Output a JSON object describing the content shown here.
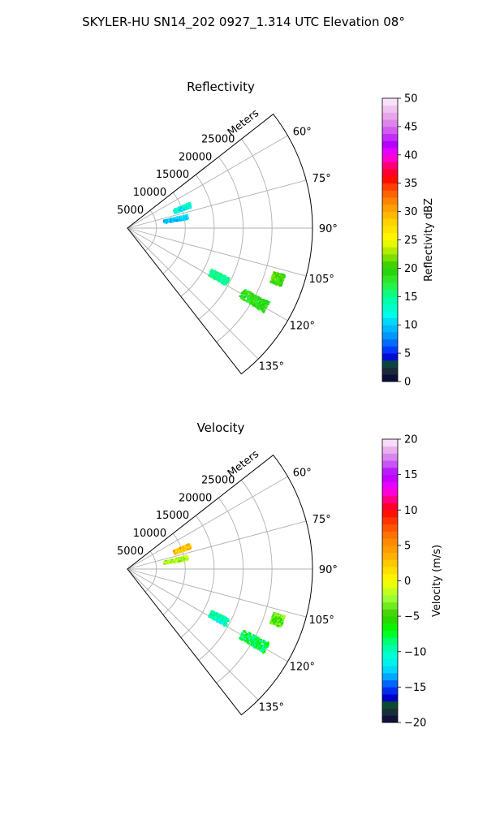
{
  "figure": {
    "title": "SKYLER-HU  SN14_202  0927_1.314 UTC Elevation 08°"
  },
  "chart_data": [
    {
      "type": "polar-sector-radar",
      "title": "Reflectivity",
      "radial_label": "Meters",
      "radial_ticks": [
        5000,
        10000,
        15000,
        20000,
        25000
      ],
      "radial_tick_labels": [
        "5000",
        "10000",
        "15000",
        "20000",
        "25000"
      ],
      "rlim": [
        0,
        32000
      ],
      "theta_range_deg": [
        52,
        142
      ],
      "theta_ticks_deg": [
        60,
        75,
        90,
        105,
        120,
        135
      ],
      "theta_tick_labels": [
        "60°",
        "75°",
        "90°",
        "105°",
        "120°",
        "135°"
      ],
      "grid": true,
      "colorbar": {
        "label": "Reflectivity dBZ",
        "min": 0,
        "max": 50,
        "ticks": [
          0,
          5,
          10,
          15,
          20,
          25,
          30,
          35,
          40,
          45,
          50
        ],
        "tick_labels": [
          "0",
          "5",
          "10",
          "15",
          "20",
          "25",
          "30",
          "35",
          "40",
          "45",
          "50"
        ],
        "color_stops": [
          [
            0,
            "#00003c"
          ],
          [
            1.5,
            "#1f1f3a"
          ],
          [
            3,
            "#0b4b30"
          ],
          [
            4,
            "#0000c8"
          ],
          [
            5.5,
            "#0033ff"
          ],
          [
            7.5,
            "#0088ff"
          ],
          [
            10,
            "#00c8ff"
          ],
          [
            12,
            "#00ffe6"
          ],
          [
            15,
            "#00ff96"
          ],
          [
            17.5,
            "#33ee33"
          ],
          [
            20,
            "#22cc00"
          ],
          [
            22.5,
            "#99e600"
          ],
          [
            25,
            "#ffff00"
          ],
          [
            28,
            "#ffd400"
          ],
          [
            31,
            "#ff9900"
          ],
          [
            34,
            "#ff4d00"
          ],
          [
            36,
            "#ff0000"
          ],
          [
            38,
            "#ff0066"
          ],
          [
            40,
            "#ff00ff"
          ],
          [
            42,
            "#b000ff"
          ],
          [
            44,
            "#d050f0"
          ],
          [
            46,
            "#e090e8"
          ],
          [
            48,
            "#f0c0f0"
          ],
          [
            50,
            "#fff0ff"
          ]
        ]
      },
      "echo_regions": [
        {
          "theta_deg": 69,
          "r_start_m": 8500,
          "r_end_m": 11500,
          "value": 12
        },
        {
          "theta_deg": 78.5,
          "r_start_m": 6300,
          "r_end_m": 10500,
          "value": 10
        },
        {
          "theta_deg": 108.5,
          "r_start_m": 26200,
          "r_end_m": 28200,
          "value": 20
        },
        {
          "theta_deg": 118,
          "r_start_m": 16000,
          "r_end_m": 19500,
          "value": 15
        },
        {
          "theta_deg": 119.5,
          "r_start_m": 22500,
          "r_end_m": 27500,
          "value": 19
        }
      ]
    },
    {
      "type": "polar-sector-radar",
      "title": "Velocity",
      "radial_label": "Meters",
      "radial_ticks": [
        5000,
        10000,
        15000,
        20000,
        25000
      ],
      "radial_tick_labels": [
        "5000",
        "10000",
        "15000",
        "20000",
        "25000"
      ],
      "rlim": [
        0,
        32000
      ],
      "theta_range_deg": [
        52,
        142
      ],
      "theta_ticks_deg": [
        60,
        75,
        90,
        105,
        120,
        135
      ],
      "theta_tick_labels": [
        "60°",
        "75°",
        "90°",
        "105°",
        "120°",
        "135°"
      ],
      "grid": true,
      "colorbar": {
        "label": "Velocity (m/s)",
        "min": -20,
        "max": 20,
        "ticks": [
          -20,
          -15,
          -10,
          -5,
          0,
          5,
          10,
          15,
          20
        ],
        "tick_labels": [
          "−20",
          "−15",
          "−10",
          "−5",
          "0",
          "5",
          "10",
          "15",
          "20"
        ],
        "color_stops": [
          [
            -20,
            "#00003c"
          ],
          [
            -19,
            "#1f1f3a"
          ],
          [
            -17.5,
            "#0b4b30"
          ],
          [
            -16.5,
            "#0000c8"
          ],
          [
            -15,
            "#0044ff"
          ],
          [
            -13,
            "#00c8ff"
          ],
          [
            -11,
            "#00ffe6"
          ],
          [
            -9,
            "#00ff96"
          ],
          [
            -7,
            "#00ff00"
          ],
          [
            -5,
            "#33cc00"
          ],
          [
            -2.5,
            "#99ff33"
          ],
          [
            0,
            "#ffff00"
          ],
          [
            2,
            "#ffd400"
          ],
          [
            4,
            "#ffa500"
          ],
          [
            6,
            "#ff8000"
          ],
          [
            8,
            "#ff4400"
          ],
          [
            10,
            "#ff0000"
          ],
          [
            11.5,
            "#ff0080"
          ],
          [
            13,
            "#ff00ff"
          ],
          [
            15,
            "#b000ff"
          ],
          [
            17,
            "#d070f0"
          ],
          [
            18.5,
            "#e8b0ec"
          ],
          [
            20,
            "#fff0ff"
          ]
        ]
      },
      "echo_regions": [
        {
          "theta_deg": 69,
          "r_start_m": 8500,
          "r_end_m": 11500,
          "value": 3
        },
        {
          "theta_deg": 78.5,
          "r_start_m": 6300,
          "r_end_m": 10500,
          "value": -2
        },
        {
          "theta_deg": 108.5,
          "r_start_m": 26200,
          "r_end_m": 28200,
          "value": -4
        },
        {
          "theta_deg": 118,
          "r_start_m": 16000,
          "r_end_m": 19500,
          "value": -10
        },
        {
          "theta_deg": 119.5,
          "r_start_m": 22500,
          "r_end_m": 27500,
          "value": -8
        }
      ]
    }
  ]
}
